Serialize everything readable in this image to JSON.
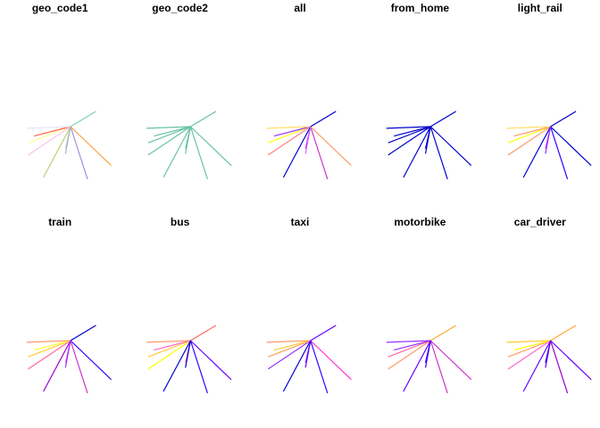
{
  "chart_data": {
    "type": "line",
    "description_of_marks": "flow desire lines radiating from one centroid, colored per attribute",
    "center": [
      1,
      1
    ],
    "lines": [
      {
        "id": "L1",
        "to": [
          -0.25,
          0.16
        ]
      },
      {
        "id": "L2",
        "to": [
          -0.25,
          0.52
        ]
      },
      {
        "id": "L3",
        "to": [
          -0.08,
          0.72
        ]
      },
      {
        "id": "L4",
        "to": [
          -0.3,
          0.95
        ]
      },
      {
        "id": "L5",
        "to": [
          0.85,
          0.35
        ]
      },
      {
        "id": "L6",
        "to": [
          1.75,
          1.45
        ]
      },
      {
        "id": "L7",
        "to": [
          2.2,
          -0.15
        ]
      },
      {
        "id": "L8",
        "to": [
          0.2,
          -0.5
        ]
      },
      {
        "id": "L9",
        "to": [
          1.5,
          -0.55
        ]
      },
      {
        "id": "L10",
        "to": [
          0.85,
          0.2
        ]
      }
    ],
    "panels": [
      {
        "title": "geo_code1",
        "colors": [
          "#F4C6E6",
          "#FFFF99",
          "#FF6347",
          "#E6E6FA",
          "#C8C8FF",
          "#7FD3B8",
          "#FFA040",
          "#B8D070",
          "#A98AD8",
          "#B0B0B0"
        ]
      },
      {
        "title": "geo_code2",
        "colors": [
          "#66C2A5",
          "#66C2A5",
          "#66C2A5",
          "#66C2A5",
          "#66C2A5",
          "#66C2A5",
          "#66C2A5",
          "#66C2A5",
          "#66C2A5",
          "#66C2A5"
        ]
      },
      {
        "title": "all",
        "colors": [
          "#FF7F7F",
          "#FFFF00",
          "#9933FF",
          "#FFE066",
          "#CC33FF",
          "#0000CC",
          "#FF9966",
          "#0000CC",
          "#CC33CC",
          "#CC66FF"
        ]
      },
      {
        "title": "from_home",
        "colors": [
          "#0000CC",
          "#0000CC",
          "#0000CC",
          "#0000CC",
          "#0000CC",
          "#0000CC",
          "#0000CC",
          "#0000CC",
          "#0000CC",
          "#0000CC"
        ]
      },
      {
        "title": "light_rail",
        "colors": [
          "#FF9966",
          "#FFFF00",
          "#FF9966",
          "#FFE066",
          "#CC33FF",
          "#0000CC",
          "#0000CC",
          "#0000CC",
          "#3300FF",
          "#9933FF"
        ]
      },
      {
        "title": "train",
        "colors": [
          "#FF6699",
          "#FFCC33",
          "#FFFF33",
          "#FF9966",
          "#FF66CC",
          "#0000CC",
          "#3300FF",
          "#9900CC",
          "#CC33CC",
          "#9933FF"
        ]
      },
      {
        "title": "bus",
        "colors": [
          "#FFFF00",
          "#FFCC33",
          "#FF66CC",
          "#FF9966",
          "#FF6699",
          "#FF6666",
          "#6600FF",
          "#0000CC",
          "#3300FF",
          "#0000CC"
        ]
      },
      {
        "title": "taxi",
        "colors": [
          "#9933FF",
          "#FF9966",
          "#FFCC33",
          "#FF9966",
          "#9933FF",
          "#6600FF",
          "#FF33CC",
          "#0000CC",
          "#3300FF",
          "#6600FF"
        ]
      },
      {
        "title": "motorbike",
        "colors": [
          "#FF9966",
          "#FF6699",
          "#9933FF",
          "#9933FF",
          "#3300FF",
          "#FFAA33",
          "#CC33CC",
          "#6600FF",
          "#CC33CC",
          "#3300FF"
        ]
      },
      {
        "title": "car_driver",
        "colors": [
          "#FF66CC",
          "#FF9966",
          "#FFFF00",
          "#FFCC33",
          "#0000CC",
          "#FFAA33",
          "#6600FF",
          "#6600FF",
          "#9900CC",
          "#6600FF"
        ]
      }
    ]
  }
}
